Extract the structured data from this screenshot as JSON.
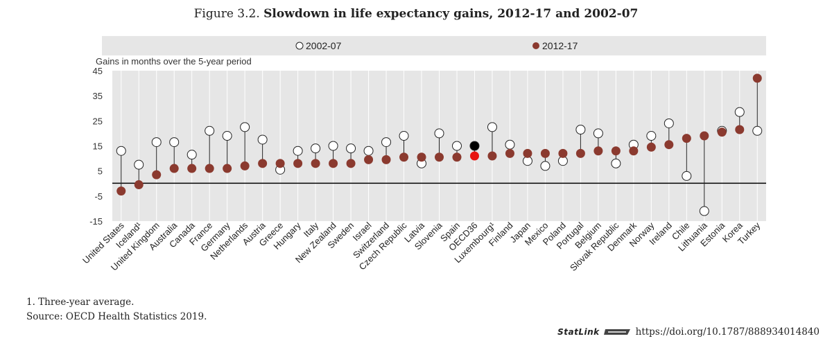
{
  "title_prefix": "Figure 3.2.",
  "title_main": "Slowdown in life expectancy gains, 2012-17 and 2002-07",
  "note1": "1. Three-year average.",
  "source": "Source: OECD Health Statistics 2019.",
  "statlink_label": "StatLink",
  "statlink_url": "https://doi.org/10.1787/888934014840",
  "colors": {
    "plot_bg": "#e6e6e6",
    "dot_2012": "#8b3a2f",
    "dot_2002_fill": "#ffffff",
    "oecd_2012": "#e8140f",
    "oecd_2002": "#000000",
    "line": "#222222"
  },
  "chart_data": {
    "type": "scatter",
    "title": "Slowdown in life expectancy gains, 2012-17 and 2002-07",
    "ylabel": "Gains in months over the 5-year period",
    "ylim": [
      -15,
      45
    ],
    "yticks": [
      45,
      35,
      25,
      15,
      5,
      -5,
      -15
    ],
    "grid": "vertical",
    "legend_position": "top",
    "highlight": "OECD36",
    "categories": [
      "United States",
      "Iceland¹",
      "United Kingdom",
      "Australia",
      "Canada",
      "France",
      "Germany",
      "Netherlands",
      "Austria",
      "Greece",
      "Hungary",
      "Italy",
      "New Zealand",
      "Sweden",
      "Israel",
      "Switzerland",
      "Czech Republic",
      "Latvia",
      "Slovenia",
      "Spain",
      "OECD36",
      "Luxembourg¹",
      "Finland",
      "Japan",
      "Mexico",
      "Poland",
      "Portugal",
      "Belgium",
      "Slovak Republic",
      "Denmark",
      "Norway",
      "Ireland",
      "Chile",
      "Lithuania",
      "Estonia",
      "Korea",
      "Turkey"
    ],
    "series": [
      {
        "name": "2002-07",
        "marker": "hollow-circle",
        "values": [
          13,
          7.5,
          16.5,
          16.5,
          11.5,
          21,
          19,
          22.5,
          17.5,
          5.5,
          13,
          14,
          15,
          14,
          13,
          16.5,
          19,
          8,
          20,
          15,
          15,
          22.5,
          15.5,
          9,
          7,
          9,
          21.5,
          20,
          8,
          15.5,
          19,
          24,
          3,
          -11,
          21,
          28.5,
          21
        ]
      },
      {
        "name": "2012-17",
        "marker": "filled-circle",
        "values": [
          -3,
          -0.5,
          3.5,
          6,
          6,
          6,
          6,
          7,
          8,
          8,
          8,
          8,
          8,
          8,
          9.5,
          9.5,
          10.5,
          10.5,
          10.5,
          10.5,
          11,
          11,
          12,
          12,
          12,
          12,
          12,
          13,
          13,
          13,
          14.5,
          15.5,
          18,
          19,
          20.5,
          21.5,
          42
        ]
      }
    ]
  }
}
